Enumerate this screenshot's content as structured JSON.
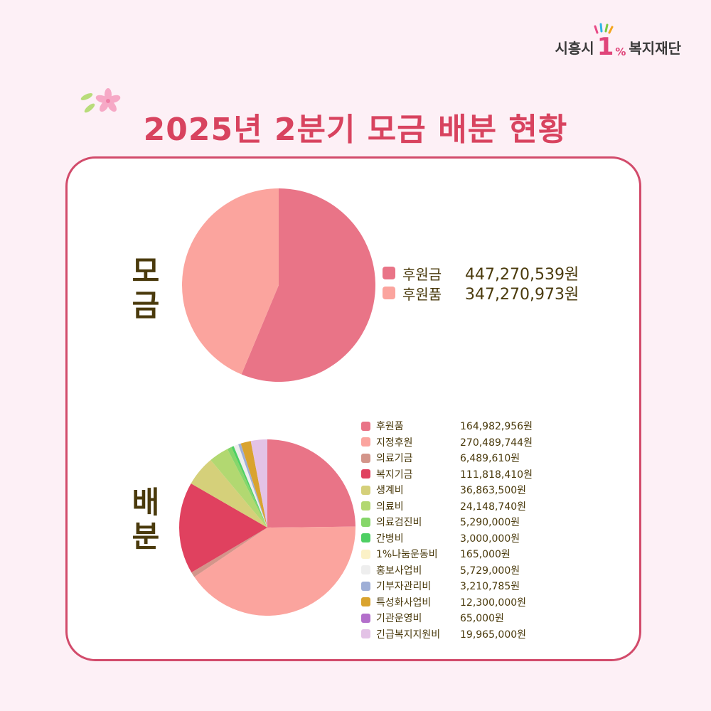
{
  "logo": {
    "prefix": "시흥시",
    "one": "1",
    "pct": "%",
    "suffix": "복지재단"
  },
  "title": "2025년 2분기 모금 배분 현황",
  "chart_data": [
    {
      "type": "pie",
      "section": "모금",
      "slices": [
        {
          "label": "후원금",
          "value": 447270539,
          "value_text": "447,270,539원",
          "color": "#e97487"
        },
        {
          "label": "후원품",
          "value": 347270973,
          "value_text": "347,270,973원",
          "color": "#fba49e"
        }
      ]
    },
    {
      "type": "pie",
      "section": "배분",
      "slices": [
        {
          "label": "후원품",
          "value": 164982956,
          "value_text": "164,982,956원",
          "color": "#e97487"
        },
        {
          "label": "지정후원",
          "value": 270489744,
          "value_text": "270,489,744원",
          "color": "#fba49e"
        },
        {
          "label": "의료기금",
          "value": 6489610,
          "value_text": "6,489,610원",
          "color": "#d3958a"
        },
        {
          "label": "복지기금",
          "value": 111818410,
          "value_text": "111,818,410원",
          "color": "#e0415f"
        },
        {
          "label": "생계비",
          "value": 36863500,
          "value_text": "36,863,500원",
          "color": "#d5d07a"
        },
        {
          "label": "의료비",
          "value": 24148740,
          "value_text": "24,148,740원",
          "color": "#b2d871"
        },
        {
          "label": "의료검진비",
          "value": 5290000,
          "value_text": "5,290,000원",
          "color": "#86d66a"
        },
        {
          "label": "간병비",
          "value": 3000000,
          "value_text": "3,000,000원",
          "color": "#4ecf63"
        },
        {
          "label": "1%나눔운동비",
          "value": 165000,
          "value_text": "165,000원",
          "color": "#fbf1c7"
        },
        {
          "label": "홍보사업비",
          "value": 5729000,
          "value_text": "5,729,000원",
          "color": "#eeeeee"
        },
        {
          "label": "기부자관리비",
          "value": 3210785,
          "value_text": "3,210,785원",
          "color": "#9eaed6"
        },
        {
          "label": "특성화사업비",
          "value": 12300000,
          "value_text": "12,300,000원",
          "color": "#d9a32e"
        },
        {
          "label": "기관운영비",
          "value": 65000,
          "value_text": "65,000원",
          "color": "#b36fcb"
        },
        {
          "label": "긴급복지지원비",
          "value": 19965000,
          "value_text": "19,965,000원",
          "color": "#e3c2e6"
        }
      ]
    }
  ]
}
